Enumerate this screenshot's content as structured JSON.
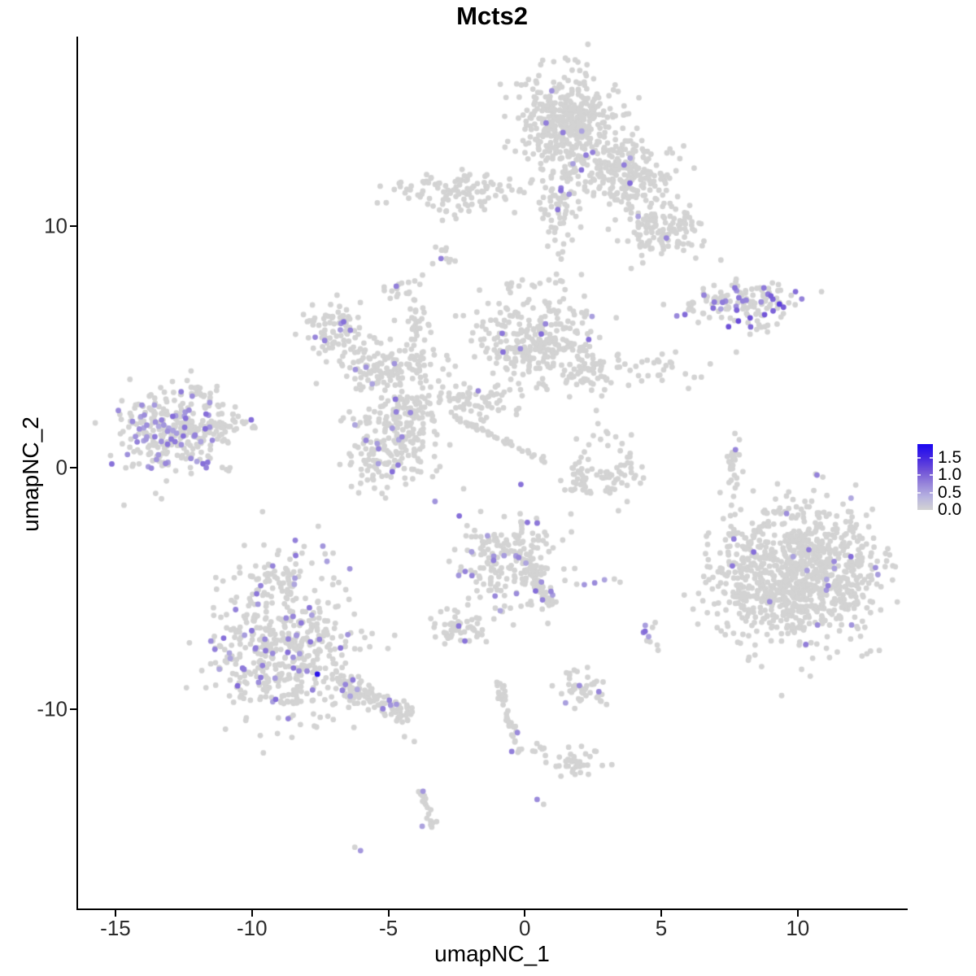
{
  "chart_data": {
    "type": "scatter",
    "title": "Mcts2",
    "xlabel": "umapNC_1",
    "ylabel": "umapNC_2",
    "xlim": [
      -16.4,
      14.0
    ],
    "ylim": [
      -18.3,
      17.85
    ],
    "grid": false,
    "xticks": [
      {
        "value": -15,
        "label": "-15"
      },
      {
        "value": -10,
        "label": "-10"
      },
      {
        "value": -5,
        "label": "-5"
      },
      {
        "value": 0,
        "label": "0"
      },
      {
        "value": 5,
        "label": "5"
      },
      {
        "value": 10,
        "label": "10"
      }
    ],
    "yticks": [
      {
        "value": 10,
        "label": "10"
      },
      {
        "value": 0,
        "label": "0"
      },
      {
        "value": -10,
        "label": "-10"
      }
    ],
    "legend": {
      "position": "right",
      "vmin": 0,
      "vmax": 1.9,
      "breaks": [
        {
          "value": 1.5,
          "label": "1.5"
        },
        {
          "value": 1.0,
          "label": "1.0"
        },
        {
          "value": 0.5,
          "label": "0.5"
        },
        {
          "value": 0.0,
          "label": "0.0"
        }
      ]
    },
    "colors": {
      "low": "#d3d3d3",
      "high": "#1a06f0",
      "stops": [
        [
          0.0,
          "#d3d3d3"
        ],
        [
          0.2,
          "#b7b2e0"
        ],
        [
          0.4,
          "#9684da"
        ],
        [
          0.6,
          "#6f51d8"
        ],
        [
          0.8,
          "#4326e2"
        ],
        [
          1.0,
          "#1a06f0"
        ]
      ]
    },
    "point_radius": 3.4,
    "seed": 42,
    "clusters": [
      {
        "name": "top-core",
        "cx": 1.64,
        "cy": 14.32,
        "sx": 0.89,
        "sy": 1.01,
        "n": 420,
        "expr_frac": 0.03
      },
      {
        "name": "top-right-ext",
        "cx": 3.67,
        "cy": 12.2,
        "sx": 0.83,
        "sy": 0.74,
        "n": 220,
        "expr_frac": 0.03
      },
      {
        "name": "top-lower-right",
        "cx": 4.98,
        "cy": 9.87,
        "sx": 0.72,
        "sy": 0.61,
        "n": 130,
        "expr_frac": 0.03
      },
      {
        "name": "top-left-arm",
        "cx": -2.38,
        "cy": 11.46,
        "sx": 1.13,
        "sy": 0.44,
        "n": 110,
        "expr_frac": 0.012
      },
      {
        "name": "top-neck",
        "cx": 1.28,
        "cy": 10.88,
        "sx": 0.39,
        "sy": 0.88,
        "n": 70,
        "expr_frac": 0.05
      },
      {
        "name": "sparse-above-mid",
        "cx": 0.45,
        "cy": 7.24,
        "sx": 0.75,
        "sy": 0.61,
        "n": 22,
        "expr_frac": 0
      },
      {
        "name": "fish-tail",
        "cx": 6.95,
        "cy": 6.84,
        "sx": 0.66,
        "sy": 0.3,
        "n": 45,
        "expr_frac": 0.12
      },
      {
        "name": "fish-body",
        "cx": 8.64,
        "cy": 6.91,
        "sx": 0.83,
        "sy": 0.47,
        "n": 85,
        "expr_frac": 0.16,
        "expr_lo": 0.5,
        "expr_hi": 1.2
      },
      {
        "name": "fish-beak",
        "cx": 8.32,
        "cy": 5.9,
        "sx": 0.3,
        "sy": 0.27,
        "n": 8,
        "expr_frac": 0
      },
      {
        "name": "mid-A",
        "cx": -6.86,
        "cy": 5.63,
        "sx": 0.66,
        "sy": 0.61,
        "n": 90,
        "expr_frac": 0.08
      },
      {
        "name": "mid-strand-up",
        "cx": -3.96,
        "cy": 5.96,
        "sx": 0.24,
        "sy": 0.74,
        "n": 35,
        "expr_frac": 0
      },
      {
        "name": "mid-band",
        "cx": -4.92,
        "cy": 4.14,
        "sx": 0.89,
        "sy": 0.54,
        "n": 130,
        "expr_frac": 0.03
      },
      {
        "name": "mid-blob",
        "cx": -4.98,
        "cy": 0.91,
        "sx": 0.83,
        "sy": 0.94,
        "n": 190,
        "expr_frac": 0.05
      },
      {
        "name": "mid-bridge",
        "cx": -4.32,
        "cy": 2.36,
        "sx": 0.54,
        "sy": 0.47,
        "n": 60,
        "expr_frac": 0.02
      },
      {
        "name": "mid-dense-V",
        "cx": 0.3,
        "cy": 5.22,
        "sx": 1.13,
        "sy": 0.81,
        "n": 260,
        "expr_frac": 0.02
      },
      {
        "name": "mid-bridge-CD",
        "cx": -2.09,
        "cy": 2.8,
        "sx": 1.04,
        "sy": 0.4,
        "n": 70,
        "expr_frac": 0.015
      },
      {
        "name": "mid-wing",
        "cx": 2.3,
        "cy": 4.14,
        "sx": 0.6,
        "sy": 0.44,
        "n": 60,
        "expr_frac": 0.03
      },
      {
        "name": "mid-sparse-band",
        "cx": 4.62,
        "cy": 4.14,
        "sx": 0.95,
        "sy": 0.4,
        "n": 28,
        "expr_frac": 0.02
      },
      {
        "name": "arc-left",
        "cx": 2.0,
        "cy": -0.34,
        "sx": 0.3,
        "sy": 0.4,
        "n": 25,
        "expr_frac": 0
      },
      {
        "name": "arc-bottom",
        "cx": 2.89,
        "cy": -0.57,
        "sx": 0.48,
        "sy": 0.27,
        "n": 30,
        "expr_frac": 0
      },
      {
        "name": "arc-right",
        "cx": 3.87,
        "cy": 0.0,
        "sx": 0.3,
        "sy": 0.47,
        "n": 20,
        "expr_frac": 0
      },
      {
        "name": "arc-top-sparse",
        "cx": 2.98,
        "cy": 1.01,
        "sx": 0.54,
        "sy": 0.27,
        "n": 12,
        "expr_frac": 0
      },
      {
        "name": "left-main",
        "cx": -13.11,
        "cy": 1.45,
        "sx": 1.01,
        "sy": 0.88,
        "n": 270,
        "expr_frac": 0.2
      },
      {
        "name": "left-tail",
        "cx": -11.42,
        "cy": 1.85,
        "sx": 0.6,
        "sy": 0.4,
        "n": 50,
        "expr_frac": 0.1
      },
      {
        "name": "left-top-sparse",
        "cx": -12.07,
        "cy": 2.86,
        "sx": 0.6,
        "sy": 0.34,
        "n": 20,
        "expr_frac": 0.05
      },
      {
        "name": "left-trail-dots",
        "cx": -10.28,
        "cy": 1.79,
        "sx": 0.4,
        "sy": 0.2,
        "n": 8,
        "expr_frac": 0
      },
      {
        "name": "right-main",
        "cx": 10.28,
        "cy": -4.38,
        "sx": 1.37,
        "sy": 1.42,
        "n": 850,
        "expr_frac": 0.022
      },
      {
        "name": "right-fringe",
        "cx": 7.75,
        "cy": -4.55,
        "sx": 0.66,
        "sy": 1.52,
        "n": 110,
        "expr_frac": 0.02
      },
      {
        "name": "bottomleft-main",
        "cx": -8.85,
        "cy": -7.18,
        "sx": 1.25,
        "sy": 1.62,
        "n": 520,
        "expr_frac": 0.13
      },
      {
        "name": "bottomleft-tip",
        "cx": -8.94,
        "cy": -4.38,
        "sx": 0.42,
        "sy": 0.34,
        "n": 25,
        "expr_frac": 0.05
      },
      {
        "name": "seahorse",
        "cx": -0.51,
        "cy": -3.87,
        "sx": 0.89,
        "sy": 0.94,
        "n": 210,
        "expr_frac": 0.1
      },
      {
        "name": "seahorse-leftblob",
        "cx": -2.53,
        "cy": -6.64,
        "sx": 0.51,
        "sy": 0.37,
        "n": 55,
        "expr_frac": 0.09
      },
      {
        "name": "small-right-pair",
        "cx": 4.71,
        "cy": -6.91,
        "sx": 0.21,
        "sy": 0.34,
        "n": 10,
        "expr_frac": 0.35
      },
      {
        "name": "blob-south-1",
        "cx": 2.12,
        "cy": -9.13,
        "sx": 0.45,
        "sy": 0.4,
        "n": 45,
        "expr_frac": 0.025
      },
      {
        "name": "blob-seven",
        "cx": 1.85,
        "cy": -12.23,
        "sx": 0.42,
        "sy": 0.34,
        "n": 35,
        "expr_frac": 0
      },
      {
        "name": "trio-dots",
        "cx": 0.51,
        "cy": -11.62,
        "sx": 0.24,
        "sy": 0.17,
        "n": 7,
        "expr_frac": 0
      },
      {
        "name": "tiny-blob-up1",
        "cx": -2.95,
        "cy": 8.76,
        "sx": 0.24,
        "sy": 0.27,
        "n": 10,
        "expr_frac": 0
      },
      {
        "name": "tiny-blob-up2",
        "cx": -4.68,
        "cy": 7.51,
        "sx": 0.27,
        "sy": 0.27,
        "n": 12,
        "expr_frac": 0
      },
      {
        "name": "right-strand-2",
        "cx": 7.78,
        "cy": -0.57,
        "sx": 0.18,
        "sy": 0.4,
        "n": 8,
        "expr_frac": 0
      }
    ],
    "segments": [
      {
        "name": "diag-streak",
        "x1": -2.59,
        "y1": 2.12,
        "x2": 0.8,
        "y2": 0.24,
        "w": 3,
        "n": 45,
        "expr_frac": 0
      },
      {
        "name": "bottomleft-tail",
        "x1": -6.86,
        "y1": -8.86,
        "x2": -4.17,
        "y2": -10.28,
        "w": 13,
        "n": 115,
        "expr_frac": 0.07
      },
      {
        "name": "seahorse-tail",
        "x1": 0.21,
        "y1": -4.14,
        "x2": 0.98,
        "y2": -5.69,
        "w": 9,
        "n": 48,
        "expr_frac": 0.05
      },
      {
        "name": "south-vstrand",
        "x1": -0.98,
        "y1": -8.86,
        "x2": -0.21,
        "y2": -11.89,
        "w": 6,
        "n": 40,
        "expr_frac": 0
      },
      {
        "name": "south-strand-2",
        "x1": -3.79,
        "y1": -13.38,
        "x2": -3.37,
        "y2": -14.93,
        "w": 5,
        "n": 20,
        "expr_frac": 0
      },
      {
        "name": "right-strand-1",
        "x1": 7.84,
        "y1": 1.41,
        "x2": 7.54,
        "y2": -0.1,
        "w": 6,
        "n": 18,
        "expr_frac": 0
      }
    ],
    "points": [
      {
        "x": -7.6,
        "y": -8.56,
        "v": 1.75
      },
      {
        "x": 9.09,
        "y": 6.97,
        "v": 1.0
      },
      {
        "x": 9.33,
        "y": 6.77,
        "v": 1.3
      },
      {
        "x": 9.48,
        "y": 6.64,
        "v": 1.05
      },
      {
        "x": 8.91,
        "y": 7.18,
        "v": 0.85
      },
      {
        "x": 2.18,
        "y": -4.85,
        "v": 0.6
      },
      {
        "x": 2.56,
        "y": -4.78,
        "v": 0.7
      },
      {
        "x": 2.92,
        "y": -4.65,
        "v": 0.5
      },
      {
        "x": 2.0,
        "y": -9.03,
        "v": 0.7
      },
      {
        "x": -0.27,
        "y": -10.98,
        "v": 0.7
      },
      {
        "x": -0.48,
        "y": -11.76,
        "v": 0.8
      },
      {
        "x": -3.73,
        "y": -13.41,
        "v": 0.6
      },
      {
        "x": -3.76,
        "y": -14.86,
        "v": 0.5
      },
      {
        "x": 0.45,
        "y": -13.75,
        "v": 0.7
      },
      {
        "x": -6.02,
        "y": -15.87,
        "v": 0.6
      },
      {
        "x": -3.07,
        "y": 8.66,
        "v": 0.8
      },
      {
        "x": -4.71,
        "y": 7.51,
        "v": 0.8
      },
      {
        "x": 7.72,
        "y": 0.74,
        "v": 0.75
      },
      {
        "x": 7.66,
        "y": -2.96,
        "v": 0.8
      },
      {
        "x": -0.83,
        "y": 5.56,
        "v": 0.85
      },
      {
        "x": -0.8,
        "y": 4.78,
        "v": 0.9
      },
      {
        "x": 0.69,
        "y": -13.95,
        "v": 0
      },
      {
        "x": -6.23,
        "y": -15.73,
        "v": 0
      },
      {
        "x": -4.41,
        "y": -11.15,
        "v": 0
      },
      {
        "x": -4.05,
        "y": -11.35,
        "v": 0
      },
      {
        "x": 7.75,
        "y": 4.78,
        "v": 0
      },
      {
        "x": 2.62,
        "y": 2.36,
        "v": 0
      },
      {
        "x": 1.64,
        "y": 2.93,
        "v": 0
      },
      {
        "x": -0.51,
        "y": 7.51,
        "v": 0
      },
      {
        "x": 0.09,
        "y": 6.84,
        "v": 0
      },
      {
        "x": 2.68,
        "y": 1.82,
        "v": 0
      },
      {
        "x": 3.43,
        "y": -1.79,
        "v": 0
      },
      {
        "x": 3.28,
        "y": -4.62,
        "v": 0
      },
      {
        "x": 3.49,
        "y": -4.75,
        "v": 0
      }
    ]
  }
}
